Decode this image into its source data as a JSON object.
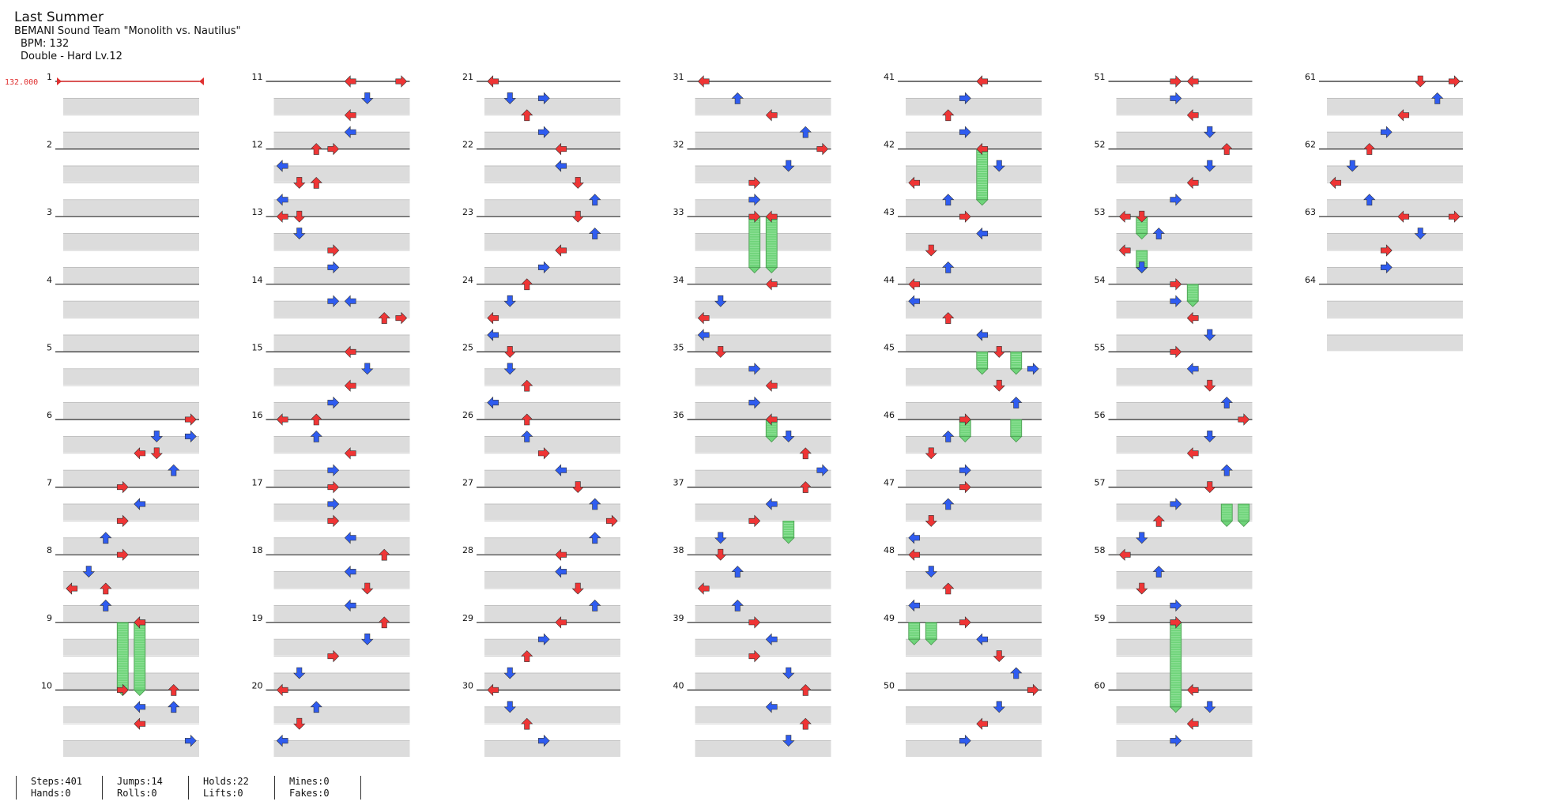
{
  "song": {
    "title": "Last Summer",
    "artist": "BEMANI Sound Team \"Monolith vs. Nautilus\"",
    "bpm_line": "BPM: 132",
    "difficulty_line": "Double - Hard  Lv.12"
  },
  "bpm_marker": "132.000",
  "colors": {
    "red": "#ef3535",
    "blue": "#2f5cf0",
    "yellow": "#f4e03a",
    "hold": "#6fd47a",
    "stripe": "#dcdcdc",
    "marker": "#e03030"
  },
  "measure_count": 64,
  "measures_per_column": 10,
  "stats": {
    "steps": "Steps:401",
    "hands": "Hands:0",
    "jumps": "Jumps:14",
    "rolls": "Rolls:0",
    "holds": "Holds:22",
    "lifts": "Lifts:0",
    "mines": "Mines:0",
    "fakes": "Fakes:0"
  },
  "chart_data": {
    "type": "step-chart",
    "lanes": [
      "left",
      "down",
      "up",
      "right",
      "left",
      "down",
      "up",
      "right"
    ],
    "notes": [
      [
        6,
        0.0,
        7
      ],
      [
        6,
        0.25,
        5
      ],
      [
        6,
        0.25,
        7
      ],
      [
        6,
        0.5,
        4
      ],
      [
        6,
        0.5,
        5
      ],
      [
        6,
        0.75,
        6
      ],
      [
        7,
        0.0,
        3
      ],
      [
        7,
        0.25,
        4
      ],
      [
        7,
        0.5,
        3
      ],
      [
        7,
        0.75,
        2
      ],
      [
        8,
        0.0,
        3
      ],
      [
        8,
        0.25,
        1
      ],
      [
        8,
        0.5,
        0
      ],
      [
        8,
        0.5,
        2
      ],
      [
        8,
        0.75,
        2
      ],
      [
        9,
        0.0,
        4
      ],
      [
        9,
        0.0,
        4
      ],
      [
        10,
        0.0,
        3
      ],
      [
        10,
        0.0,
        6
      ],
      [
        10,
        0.25,
        4
      ],
      [
        10,
        0.25,
        6
      ],
      [
        10,
        0.5,
        4
      ],
      [
        10,
        0.75,
        7
      ],
      [
        11,
        0.0,
        4
      ],
      [
        11,
        0.0,
        7
      ],
      [
        11,
        0.25,
        5
      ],
      [
        11,
        0.5,
        4
      ],
      [
        11,
        0.75,
        4
      ],
      [
        12,
        0.0,
        2
      ],
      [
        12,
        0.0,
        3
      ],
      [
        12,
        0.25,
        0
      ],
      [
        12,
        0.5,
        1
      ],
      [
        12,
        0.5,
        2
      ],
      [
        12,
        0.75,
        0
      ],
      [
        13,
        0.0,
        0
      ],
      [
        13,
        0.0,
        1
      ],
      [
        13,
        0.25,
        1
      ],
      [
        13,
        0.5,
        3
      ],
      [
        13,
        0.75,
        3
      ],
      [
        14,
        0.25,
        3
      ],
      [
        14,
        0.25,
        4
      ],
      [
        14,
        0.5,
        6
      ],
      [
        14,
        0.5,
        7
      ],
      [
        15,
        0.0,
        4
      ],
      [
        15,
        0.25,
        5
      ],
      [
        15,
        0.5,
        4
      ],
      [
        15,
        0.75,
        3
      ],
      [
        16,
        0.0,
        0
      ],
      [
        16,
        0.0,
        2
      ],
      [
        16,
        0.25,
        2
      ],
      [
        16,
        0.5,
        4
      ],
      [
        16,
        0.75,
        3
      ],
      [
        17,
        0.0,
        3
      ],
      [
        17,
        0.25,
        3
      ],
      [
        17,
        0.5,
        3
      ],
      [
        17,
        0.75,
        4
      ],
      [
        18,
        0.0,
        6
      ],
      [
        18,
        0.25,
        4
      ],
      [
        18,
        0.5,
        5
      ],
      [
        18,
        0.75,
        4
      ],
      [
        19,
        0.0,
        6
      ],
      [
        19,
        0.25,
        5
      ],
      [
        19,
        0.5,
        3
      ],
      [
        19,
        0.75,
        1
      ],
      [
        20,
        0.0,
        0
      ],
      [
        20,
        0.25,
        2
      ],
      [
        20,
        0.5,
        1
      ],
      [
        20,
        0.75,
        0
      ],
      [
        21,
        0.0,
        0
      ],
      [
        21,
        0.25,
        3
      ],
      [
        21,
        0.25,
        1
      ],
      [
        21,
        0.5,
        2
      ],
      [
        21,
        0.75,
        3
      ],
      [
        22,
        0.0,
        4
      ],
      [
        22,
        0.25,
        4
      ],
      [
        22,
        0.5,
        5
      ],
      [
        22,
        0.75,
        6
      ],
      [
        23,
        0.0,
        5
      ],
      [
        23,
        0.25,
        6
      ],
      [
        23,
        0.5,
        4
      ],
      [
        23,
        0.75,
        3
      ],
      [
        24,
        0.0,
        2
      ],
      [
        24,
        0.25,
        1
      ],
      [
        24,
        0.5,
        0
      ],
      [
        24,
        0.75,
        0
      ],
      [
        25,
        0.0,
        1
      ],
      [
        25,
        0.25,
        1
      ],
      [
        25,
        0.5,
        2
      ],
      [
        25,
        0.75,
        0
      ],
      [
        26,
        0.0,
        2
      ],
      [
        26,
        0.25,
        2
      ],
      [
        26,
        0.5,
        3
      ],
      [
        26,
        0.75,
        4
      ],
      [
        27,
        0.0,
        5
      ],
      [
        27,
        0.25,
        6
      ],
      [
        27,
        0.5,
        7
      ],
      [
        27,
        0.75,
        6
      ],
      [
        28,
        0.0,
        4
      ],
      [
        28,
        0.25,
        4
      ],
      [
        28,
        0.5,
        5
      ],
      [
        28,
        0.75,
        6
      ],
      [
        29,
        0.0,
        4
      ],
      [
        29,
        0.25,
        3
      ],
      [
        29,
        0.5,
        2
      ],
      [
        29,
        0.75,
        1
      ],
      [
        30,
        0.0,
        0
      ],
      [
        30,
        0.25,
        1
      ],
      [
        30,
        0.5,
        2
      ],
      [
        30,
        0.75,
        3
      ],
      [
        31,
        0.0,
        0
      ],
      [
        31,
        0.25,
        2
      ],
      [
        31,
        0.5,
        4
      ],
      [
        31,
        0.75,
        6
      ],
      [
        32,
        0.0,
        7
      ],
      [
        32,
        0.25,
        5
      ],
      [
        32,
        0.5,
        3
      ],
      [
        32,
        0.75,
        3
      ],
      [
        33,
        0.0,
        3
      ],
      [
        33,
        0.0,
        4
      ],
      [
        34,
        0.0,
        4
      ],
      [
        34,
        0.25,
        1
      ],
      [
        34,
        0.5,
        0
      ],
      [
        34,
        0.75,
        0
      ],
      [
        35,
        0.0,
        1
      ],
      [
        35,
        0.25,
        3
      ],
      [
        35,
        0.5,
        4
      ],
      [
        35,
        0.75,
        3
      ],
      [
        36,
        0.0,
        4
      ],
      [
        36,
        0.25,
        5
      ],
      [
        36,
        0.5,
        6
      ],
      [
        36,
        0.75,
        7
      ],
      [
        37,
        0.0,
        6
      ],
      [
        37,
        0.25,
        4
      ],
      [
        37,
        0.5,
        3
      ],
      [
        37,
        0.75,
        1
      ],
      [
        38,
        0.0,
        1
      ],
      [
        38,
        0.25,
        2
      ],
      [
        38,
        0.5,
        0
      ],
      [
        38,
        0.75,
        2
      ],
      [
        39,
        0.0,
        3
      ],
      [
        39,
        0.25,
        4
      ],
      [
        39,
        0.5,
        3
      ],
      [
        39,
        0.75,
        5
      ],
      [
        40,
        0.0,
        6
      ],
      [
        40,
        0.25,
        4
      ],
      [
        40,
        0.5,
        6
      ],
      [
        40,
        0.75,
        5
      ],
      [
        41,
        0.0,
        4
      ],
      [
        41,
        0.25,
        3
      ],
      [
        41,
        0.5,
        2
      ],
      [
        41,
        0.75,
        3
      ],
      [
        42,
        0.0,
        4
      ],
      [
        42,
        0.25,
        5
      ],
      [
        42,
        0.5,
        0
      ],
      [
        42,
        0.75,
        2
      ],
      [
        43,
        0.0,
        3
      ],
      [
        43,
        0.25,
        4
      ],
      [
        43,
        0.5,
        1
      ],
      [
        43,
        0.75,
        2
      ],
      [
        44,
        0.0,
        0
      ],
      [
        44,
        0.25,
        0
      ],
      [
        44,
        0.5,
        2
      ],
      [
        44,
        0.75,
        4
      ],
      [
        45,
        0.0,
        5
      ],
      [
        45,
        0.25,
        7
      ],
      [
        45,
        0.5,
        5
      ],
      [
        45,
        0.75,
        6
      ],
      [
        46,
        0.0,
        3
      ],
      [
        46,
        0.25,
        2
      ],
      [
        46,
        0.5,
        1
      ],
      [
        46,
        0.75,
        3
      ],
      [
        47,
        0.0,
        3
      ],
      [
        47,
        0.25,
        2
      ],
      [
        47,
        0.5,
        1
      ],
      [
        47,
        0.75,
        0
      ],
      [
        48,
        0.0,
        0
      ],
      [
        48,
        0.25,
        1
      ],
      [
        48,
        0.5,
        2
      ],
      [
        48,
        0.75,
        0
      ],
      [
        49,
        0.0,
        3
      ],
      [
        49,
        0.25,
        4
      ],
      [
        49,
        0.5,
        5
      ],
      [
        49,
        0.75,
        6
      ],
      [
        50,
        0.0,
        7
      ],
      [
        50,
        0.25,
        5
      ],
      [
        50,
        0.5,
        4
      ],
      [
        50,
        0.75,
        3
      ],
      [
        51,
        0.0,
        3
      ],
      [
        51,
        0.0,
        4
      ],
      [
        51,
        0.25,
        3
      ],
      [
        51,
        0.5,
        4
      ],
      [
        51,
        0.75,
        5
      ],
      [
        52,
        0.0,
        6
      ],
      [
        52,
        0.25,
        5
      ],
      [
        52,
        0.5,
        4
      ],
      [
        52,
        0.75,
        3
      ],
      [
        53,
        0.0,
        0
      ],
      [
        53,
        0.0,
        1
      ],
      [
        53,
        0.25,
        2
      ],
      [
        53,
        0.5,
        0
      ],
      [
        53,
        0.75,
        1
      ],
      [
        54,
        0.0,
        3
      ],
      [
        54,
        0.25,
        3
      ],
      [
        54,
        0.5,
        4
      ],
      [
        54,
        0.75,
        5
      ],
      [
        55,
        0.0,
        3
      ],
      [
        55,
        0.25,
        4
      ],
      [
        55,
        0.5,
        5
      ],
      [
        55,
        0.75,
        6
      ],
      [
        56,
        0.0,
        7
      ],
      [
        56,
        0.25,
        5
      ],
      [
        56,
        0.5,
        4
      ],
      [
        56,
        0.75,
        6
      ],
      [
        57,
        0.0,
        5
      ],
      [
        57,
        0.25,
        3
      ],
      [
        57,
        0.5,
        2
      ],
      [
        57,
        0.75,
        1
      ],
      [
        58,
        0.0,
        0
      ],
      [
        58,
        0.25,
        2
      ],
      [
        58,
        0.5,
        1
      ],
      [
        58,
        0.75,
        3
      ],
      [
        59,
        0.0,
        3
      ],
      [
        59,
        0.0,
        3
      ],
      [
        60,
        0.0,
        4
      ],
      [
        60,
        0.25,
        5
      ],
      [
        60,
        0.5,
        4
      ],
      [
        60,
        0.75,
        3
      ],
      [
        61,
        0.0,
        5
      ],
      [
        61,
        0.0,
        7
      ],
      [
        61,
        0.25,
        6
      ],
      [
        61,
        0.5,
        4
      ],
      [
        61,
        0.75,
        3
      ],
      [
        62,
        0.0,
        2
      ],
      [
        62,
        0.25,
        1
      ],
      [
        62,
        0.5,
        0
      ],
      [
        62,
        0.75,
        2
      ],
      [
        63,
        0.0,
        4
      ],
      [
        63,
        0.0,
        7
      ],
      [
        63,
        0.25,
        5
      ],
      [
        63,
        0.5,
        3
      ],
      [
        63,
        0.75,
        3
      ]
    ],
    "holds": [
      [
        9,
        0.0,
        3,
        1.0
      ],
      [
        9,
        0.0,
        4,
        1.0
      ],
      [
        33,
        0.0,
        3,
        0.75
      ],
      [
        33,
        0.0,
        4,
        0.75
      ],
      [
        36,
        0.0,
        4,
        0.25
      ],
      [
        37,
        0.5,
        5,
        0.25
      ],
      [
        42,
        0.0,
        4,
        0.75
      ],
      [
        45,
        0.0,
        4,
        0.25
      ],
      [
        45,
        0.0,
        6,
        0.25
      ],
      [
        46,
        0.0,
        3,
        0.25
      ],
      [
        46,
        0.0,
        6,
        0.25
      ],
      [
        49,
        0.0,
        0,
        0.25
      ],
      [
        49,
        0.0,
        1,
        0.25
      ],
      [
        53,
        0.0,
        1,
        0.25
      ],
      [
        53,
        0.5,
        1,
        0.25
      ],
      [
        54,
        0.0,
        4,
        0.25
      ],
      [
        57,
        0.25,
        6,
        0.25
      ],
      [
        57,
        0.25,
        7,
        0.25
      ],
      [
        59,
        0.0,
        3,
        1.25
      ]
    ]
  }
}
